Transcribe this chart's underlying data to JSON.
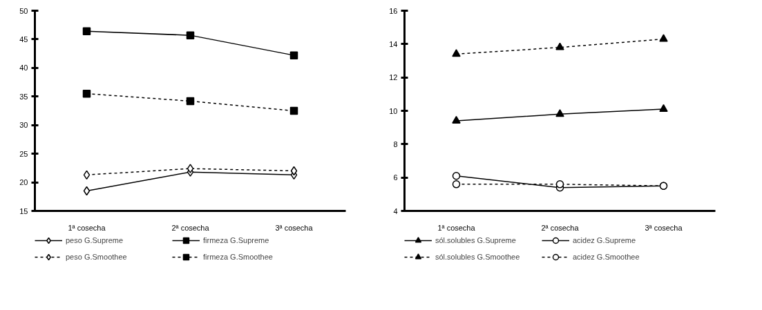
{
  "chart_data": [
    {
      "type": "line",
      "categories": [
        "1ª cosecha",
        "2ª cosecha",
        "3ª cosecha"
      ],
      "ylim": [
        15,
        50
      ],
      "yticks": [
        15,
        20,
        25,
        30,
        35,
        40,
        45,
        50
      ],
      "grid": false,
      "legend": "bottom",
      "series": [
        {
          "name": "peso G.Supreme",
          "color": "#000000",
          "marker": "diamond",
          "line_style": "solid",
          "values": [
            18.5,
            21.8,
            21.3
          ]
        },
        {
          "name": "peso G.Smoothee",
          "color": "#000000",
          "marker": "diamond",
          "line_style": "dotted",
          "values": [
            21.3,
            22.4,
            22.0
          ]
        },
        {
          "name": "firmeza G.Supreme",
          "color": "#000000",
          "marker": "square",
          "line_style": "solid",
          "values": [
            46.4,
            45.7,
            42.2
          ]
        },
        {
          "name": "firmeza G.Smoothee",
          "color": "#000000",
          "marker": "square",
          "line_style": "dotted",
          "values": [
            35.5,
            34.2,
            32.5
          ]
        }
      ]
    },
    {
      "type": "line",
      "categories": [
        "1ª cosecha",
        "2ª cosecha",
        "3ª cosecha"
      ],
      "ylim": [
        4,
        16
      ],
      "yticks": [
        4,
        6,
        8,
        10,
        12,
        14,
        16
      ],
      "grid": false,
      "legend": "bottom",
      "series": [
        {
          "name": "sól.solubles G.Supreme",
          "color": "#000000",
          "marker": "triangle",
          "line_style": "solid",
          "values": [
            9.4,
            9.8,
            10.1
          ]
        },
        {
          "name": "sól.solubles G.Smoothee",
          "color": "#000000",
          "marker": "triangle",
          "line_style": "dotted",
          "values": [
            13.4,
            13.8,
            14.3
          ]
        },
        {
          "name": "acidez G.Supreme",
          "color": "#000000",
          "marker": "circle",
          "line_style": "solid",
          "values": [
            6.1,
            5.4,
            5.5
          ]
        },
        {
          "name": "acidez G.Smoothee",
          "color": "#000000",
          "marker": "circle",
          "line_style": "dotted",
          "values": [
            5.6,
            5.6,
            5.5
          ]
        }
      ]
    }
  ]
}
